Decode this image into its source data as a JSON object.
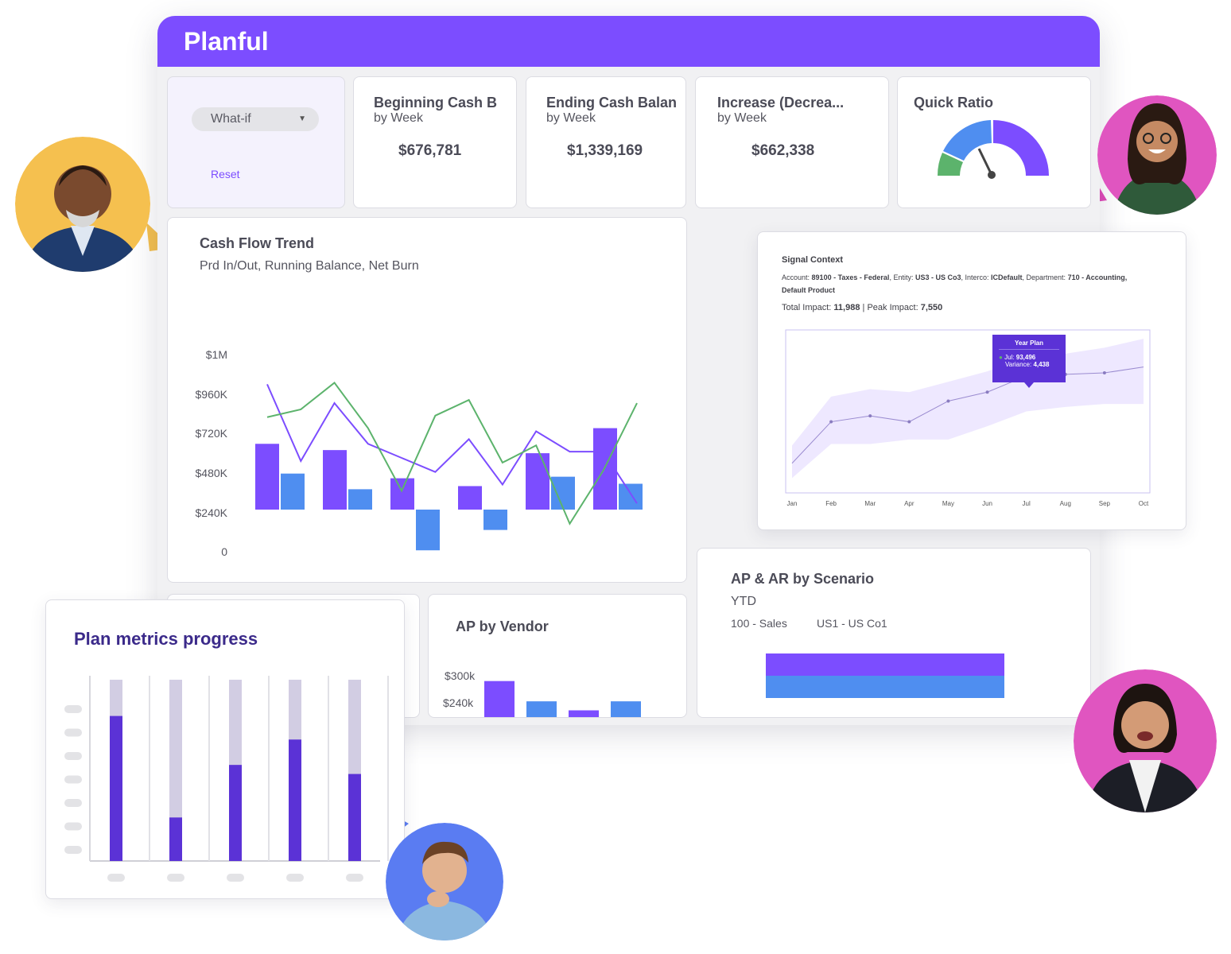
{
  "app": {
    "title": "Planful"
  },
  "colors": {
    "brand": "#7c4dff",
    "blue": "#4f8ef0",
    "green": "#5cb36c",
    "dark_purple": "#5b32d6"
  },
  "scenario": {
    "selected": "What-if",
    "reset_label": "Reset"
  },
  "kpis": [
    {
      "title": "Beginning Cash B",
      "subtitle": "by Week",
      "value": "$676,781"
    },
    {
      "title": "Ending Cash Balan",
      "subtitle": "by Week",
      "value": "$1,339,169"
    },
    {
      "title": "Increase (Decrea...",
      "subtitle": "by Week",
      "value": "$662,338"
    }
  ],
  "quick_ratio": {
    "title": "Quick Ratio"
  },
  "cash_flow": {
    "title": "Cash Flow Trend",
    "subtitle": "Prd In/Out, Running Balance, Net Burn",
    "y_labels": [
      "$1M",
      "$960K",
      "$720K",
      "$480K",
      "$240K",
      "0"
    ]
  },
  "signal": {
    "title": "Signal Context",
    "account_label": "Account:",
    "account_value": "89100 - Taxes - Federal",
    "entity_label": ", Entity:",
    "entity_value": "US3 - US Co3",
    "interco_label": ",  Interco:",
    "interco_value": "ICDefault",
    "dept_label": ", Department:",
    "dept_value": "710 - Accounting,",
    "product_value": "Default Product",
    "total_label": "Total Impact:",
    "total_value": "11,988",
    "peak_label": " | Peak Impact:",
    "peak_value": "7,550",
    "tooltip_title": "Year Plan",
    "tooltip_line1_label": "Jul:",
    "tooltip_line1_value": "93,496",
    "tooltip_line2_label": "Variance:",
    "tooltip_line2_value": "4,438",
    "months": [
      "Jan",
      "Feb",
      "Mar",
      "Apr",
      "May",
      "Jun",
      "Jul",
      "Aug",
      "Sep",
      "Oct"
    ]
  },
  "ap_vendor": {
    "title": "AP by Vendor",
    "y_labels": [
      "$300k",
      "$240k"
    ]
  },
  "ap_ar": {
    "title": "AP & AR by Scenario",
    "subtitle": "YTD",
    "filter1": "100 - Sales",
    "filter2": "US1 - US Co1"
  },
  "plan_metrics": {
    "title": "Plan metrics progress"
  },
  "chart_data": [
    {
      "type": "bar",
      "title": "Cash Flow Trend",
      "subtitle": "Prd In/Out, Running Balance, Net Burn",
      "ylim": [
        0,
        1000000
      ],
      "y_tick_labels": [
        "0",
        "$240K",
        "$480K",
        "$720K",
        "$960K",
        "$1M"
      ],
      "bar_series": [
        {
          "values": [
            420000,
            380000,
            200000,
            150000,
            360000,
            520000
          ]
        },
        {
          "values": [
            230000,
            130000,
            -260000,
            -130000,
            210000,
            165000
          ]
        }
      ],
      "line_series": [
        {
          "color": "#7c4dff",
          "values": [
            800000,
            310000,
            680000,
            420000,
            330000,
            240000,
            450000,
            160000,
            500000,
            370000,
            370000,
            40000
          ]
        },
        {
          "color": "#5cb36c",
          "values": [
            590000,
            640000,
            810000,
            520000,
            120000,
            600000,
            700000,
            300000,
            410000,
            -90000,
            250000,
            680000
          ]
        }
      ]
    },
    {
      "type": "line",
      "title": "Signal Context",
      "x": [
        "Jan",
        "Feb",
        "Mar",
        "Apr",
        "May",
        "Jun",
        "Jul",
        "Aug",
        "Sep",
        "Oct"
      ],
      "values": [
        20,
        48,
        52,
        48,
        62,
        68,
        79,
        80,
        81,
        85
      ],
      "band_low": [
        10,
        33,
        33,
        36,
        36,
        45,
        55,
        58,
        60,
        60
      ],
      "band_high": [
        32,
        65,
        70,
        68,
        75,
        82,
        92,
        94,
        98,
        104
      ]
    },
    {
      "type": "bar",
      "title": "AP by Vendor",
      "y_tick_labels": [
        "$240k",
        "$300k"
      ],
      "values": [
        320000,
        275000,
        255000,
        275000
      ]
    },
    {
      "type": "bar",
      "title": "AP & AR by Scenario",
      "subtitle": "YTD",
      "series": [
        {
          "values": [
            1
          ]
        },
        {
          "values": [
            1
          ]
        }
      ]
    },
    {
      "type": "bar",
      "title": "Plan metrics progress",
      "values": [
        0.8,
        0.24,
        0.53,
        0.67,
        0.48
      ]
    },
    {
      "type": "gauge",
      "title": "Quick Ratio",
      "value": 0.45
    }
  ]
}
